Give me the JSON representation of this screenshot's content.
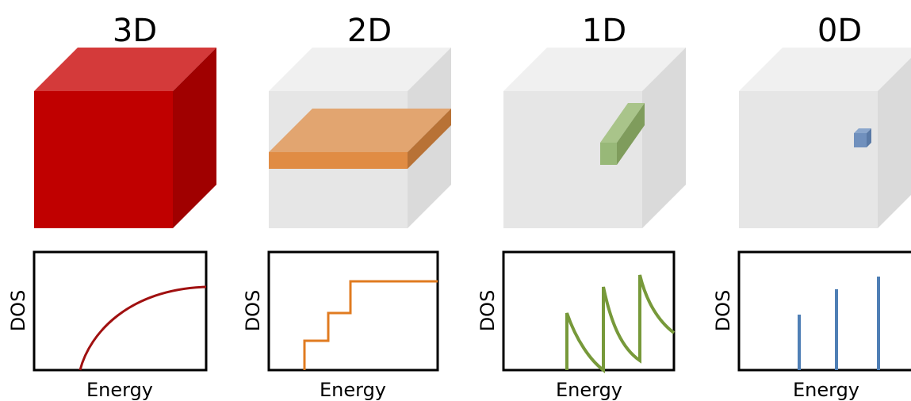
{
  "panels": [
    {
      "title": "3D",
      "y_label": "DOS",
      "x_label": "Energy"
    },
    {
      "title": "2D",
      "y_label": "DOS",
      "x_label": "Energy"
    },
    {
      "title": "1D",
      "y_label": "DOS",
      "x_label": "Energy"
    },
    {
      "title": "0D",
      "y_label": "DOS",
      "x_label": "Energy"
    }
  ]
}
